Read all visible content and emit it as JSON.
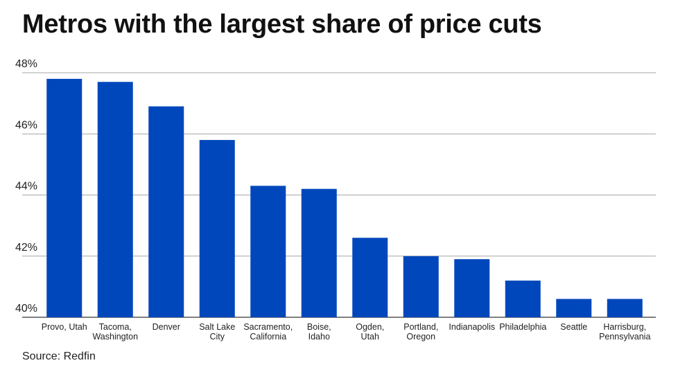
{
  "title": "Metros with the largest share of price cuts",
  "source": "Source: Redfin",
  "colors": {
    "bar": "#0047bb",
    "grid": "#888888",
    "axis": "#333333"
  },
  "chart_data": {
    "type": "bar",
    "title": "Metros with the largest share of price cuts",
    "xlabel": "",
    "ylabel": "",
    "ylim": [
      40,
      48
    ],
    "y_ticks": [
      40,
      42,
      44,
      46,
      48
    ],
    "y_tick_labels": [
      "40%",
      "42%",
      "44%",
      "46%",
      "48%"
    ],
    "grid": true,
    "categories": [
      [
        "Provo, Utah"
      ],
      [
        "Tacoma,",
        "Washington"
      ],
      [
        "Denver"
      ],
      [
        "Salt Lake",
        "City"
      ],
      [
        "Sacramento,",
        "California"
      ],
      [
        "Boise,",
        "Idaho"
      ],
      [
        "Ogden,",
        "Utah"
      ],
      [
        "Portland,",
        "Oregon"
      ],
      [
        "Indianapolis"
      ],
      [
        "Philadelphia"
      ],
      [
        "Seattle"
      ],
      [
        "Harrisburg,",
        "Pennsylvania"
      ]
    ],
    "values": [
      47.8,
      47.7,
      46.9,
      45.8,
      44.3,
      44.2,
      42.6,
      42.0,
      41.9,
      41.2,
      40.6,
      40.6
    ]
  }
}
